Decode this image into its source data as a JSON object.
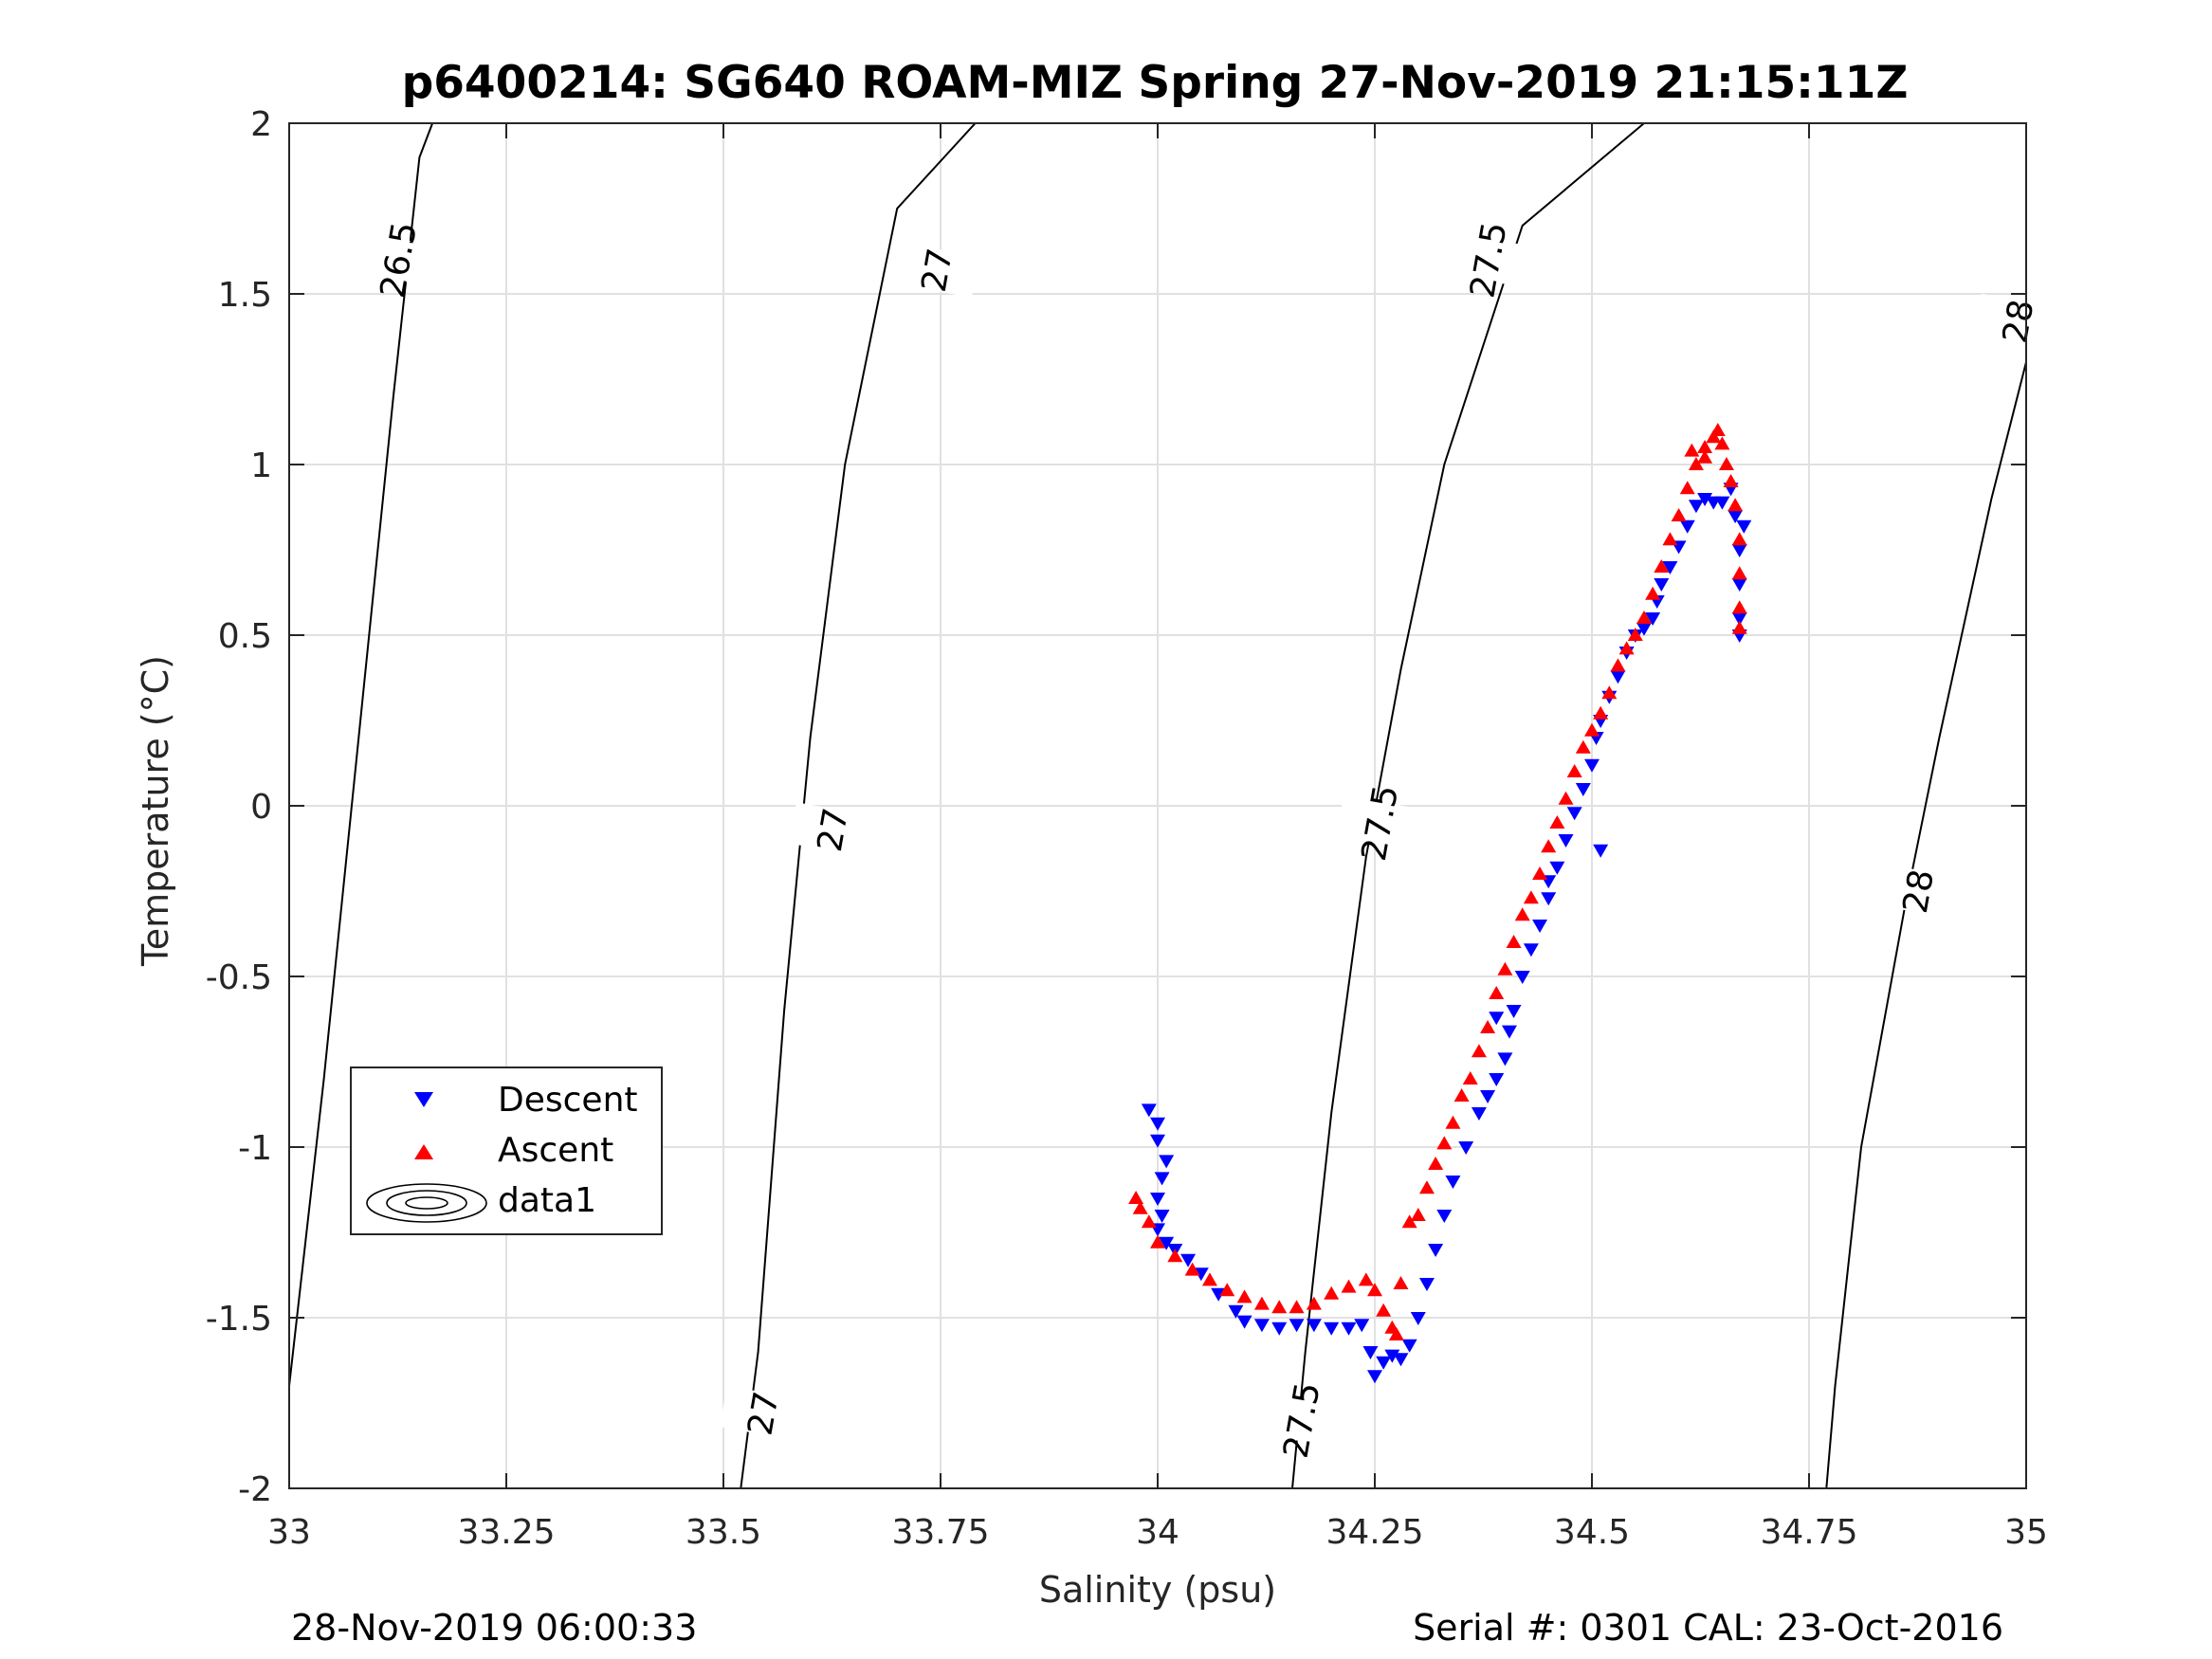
{
  "chart_data": {
    "type": "scatter",
    "title": "p6400214: SG640 ROAM-MIZ Spring 27-Nov-2019 21:15:11Z",
    "xlabel": "Salinity (psu)",
    "ylabel": "Temperature (°C)",
    "xlim": [
      33,
      35
    ],
    "ylim": [
      -2,
      2
    ],
    "xticks": [
      "33",
      "33.25",
      "33.5",
      "33.75",
      "34",
      "34.25",
      "34.5",
      "34.75",
      "35"
    ],
    "yticks": [
      "-2",
      "-1.5",
      "-1",
      "-0.5",
      "0",
      "0.5",
      "1",
      "1.5",
      "2"
    ],
    "grid": true,
    "legend": {
      "placement": "lower-left",
      "entries": [
        {
          "label": "Descent",
          "marker": "triangle-down",
          "color": "#0000ff"
        },
        {
          "label": "Ascent",
          "marker": "triangle-up",
          "color": "#ff0000"
        },
        {
          "label": "data1",
          "marker": "contour-ellipses",
          "color": "#000000"
        }
      ]
    },
    "contours": [
      {
        "level": "26.5",
        "points": [
          [
            32.99,
            -2.0
          ],
          [
            33.0,
            -1.7
          ],
          [
            33.04,
            -0.8
          ],
          [
            33.08,
            0.2
          ],
          [
            33.12,
            1.2
          ],
          [
            33.15,
            1.9
          ],
          [
            33.165,
            2.0
          ]
        ],
        "labels": [
          {
            "text": "26.5",
            "x": 33.125,
            "y": 1.6
          }
        ]
      },
      {
        "level": "27",
        "points": [
          [
            33.52,
            -2.0
          ],
          [
            33.54,
            -1.6
          ],
          [
            33.57,
            -0.6
          ],
          [
            33.6,
            0.2
          ],
          [
            33.64,
            1.0
          ],
          [
            33.7,
            1.75
          ],
          [
            33.79,
            2.0
          ]
        ],
        "labels": [
          {
            "text": "27",
            "x": 33.545,
            "y": -1.78
          },
          {
            "text": "27",
            "x": 33.625,
            "y": -0.07
          },
          {
            "text": "27",
            "x": 33.745,
            "y": 1.57
          }
        ]
      },
      {
        "level": "27.5",
        "points": [
          [
            34.155,
            -2.0
          ],
          [
            34.17,
            -1.6
          ],
          [
            34.2,
            -0.9
          ],
          [
            34.24,
            -0.15
          ],
          [
            34.28,
            0.4
          ],
          [
            34.33,
            1.0
          ],
          [
            34.42,
            1.7
          ],
          [
            34.56,
            2.0
          ]
        ],
        "labels": [
          {
            "text": "27.5",
            "x": 34.165,
            "y": -1.8
          },
          {
            "text": "27.5",
            "x": 34.255,
            "y": -0.05
          },
          {
            "text": "27.5",
            "x": 34.38,
            "y": 1.6
          }
        ]
      },
      {
        "level": "28",
        "points": [
          [
            34.77,
            -2.0
          ],
          [
            34.78,
            -1.7
          ],
          [
            34.81,
            -1.0
          ],
          [
            34.86,
            -0.3
          ],
          [
            34.9,
            0.2
          ],
          [
            34.96,
            0.9
          ],
          [
            35.0,
            1.3
          ]
        ],
        "labels": [
          {
            "text": "28",
            "x": 34.875,
            "y": -0.25
          },
          {
            "text": "28",
            "x": 34.99,
            "y": 1.42
          }
        ]
      }
    ],
    "series": [
      {
        "name": "Descent",
        "marker": "triangle-down",
        "color": "#0000ff",
        "points": [
          [
            33.99,
            -0.89
          ],
          [
            34.0,
            -0.93
          ],
          [
            34.0,
            -0.98
          ],
          [
            34.01,
            -1.04
          ],
          [
            34.005,
            -1.09
          ],
          [
            34.0,
            -1.15
          ],
          [
            34.005,
            -1.2
          ],
          [
            34.0,
            -1.24
          ],
          [
            34.01,
            -1.28
          ],
          [
            34.02,
            -1.3
          ],
          [
            34.035,
            -1.33
          ],
          [
            34.05,
            -1.37
          ],
          [
            34.07,
            -1.43
          ],
          [
            34.09,
            -1.48
          ],
          [
            34.1,
            -1.51
          ],
          [
            34.12,
            -1.52
          ],
          [
            34.14,
            -1.53
          ],
          [
            34.16,
            -1.52
          ],
          [
            34.18,
            -1.52
          ],
          [
            34.2,
            -1.53
          ],
          [
            34.22,
            -1.53
          ],
          [
            34.235,
            -1.52
          ],
          [
            34.245,
            -1.6
          ],
          [
            34.25,
            -1.67
          ],
          [
            34.26,
            -1.63
          ],
          [
            34.27,
            -1.61
          ],
          [
            34.28,
            -1.62
          ],
          [
            34.29,
            -1.58
          ],
          [
            34.3,
            -1.5
          ],
          [
            34.31,
            -1.4
          ],
          [
            34.32,
            -1.3
          ],
          [
            34.33,
            -1.2
          ],
          [
            34.34,
            -1.1
          ],
          [
            34.355,
            -1.0
          ],
          [
            34.37,
            -0.9
          ],
          [
            34.38,
            -0.85
          ],
          [
            34.39,
            -0.8
          ],
          [
            34.4,
            -0.74
          ],
          [
            34.405,
            -0.66
          ],
          [
            34.41,
            -0.6
          ],
          [
            34.42,
            -0.5
          ],
          [
            34.43,
            -0.42
          ],
          [
            34.44,
            -0.35
          ],
          [
            34.45,
            -0.27
          ],
          [
            34.46,
            -0.18
          ],
          [
            34.47,
            -0.1
          ],
          [
            34.48,
            -0.02
          ],
          [
            34.49,
            0.05
          ],
          [
            34.5,
            0.12
          ],
          [
            34.505,
            0.2
          ],
          [
            34.51,
            0.25
          ],
          [
            34.52,
            0.32
          ],
          [
            34.53,
            0.38
          ],
          [
            34.54,
            0.45
          ],
          [
            34.55,
            0.5
          ],
          [
            34.56,
            0.52
          ],
          [
            34.57,
            0.55
          ],
          [
            34.575,
            0.6
          ],
          [
            34.58,
            0.65
          ],
          [
            34.59,
            0.7
          ],
          [
            34.6,
            0.76
          ],
          [
            34.61,
            0.82
          ],
          [
            34.62,
            0.88
          ],
          [
            34.63,
            0.9
          ],
          [
            34.64,
            0.89
          ],
          [
            34.65,
            0.89
          ],
          [
            34.66,
            0.93
          ],
          [
            34.665,
            0.85
          ],
          [
            34.67,
            0.75
          ],
          [
            34.67,
            0.65
          ],
          [
            34.67,
            0.55
          ],
          [
            34.67,
            0.5
          ],
          [
            34.675,
            0.82
          ],
          [
            34.51,
            -0.13
          ],
          [
            34.45,
            -0.22
          ],
          [
            34.39,
            -0.62
          ]
        ]
      },
      {
        "name": "Ascent",
        "marker": "triangle-up",
        "color": "#ff0000",
        "points": [
          [
            33.975,
            -1.15
          ],
          [
            33.98,
            -1.18
          ],
          [
            33.99,
            -1.22
          ],
          [
            34.0,
            -1.28
          ],
          [
            34.02,
            -1.32
          ],
          [
            34.04,
            -1.36
          ],
          [
            34.06,
            -1.39
          ],
          [
            34.08,
            -1.42
          ],
          [
            34.1,
            -1.44
          ],
          [
            34.12,
            -1.46
          ],
          [
            34.14,
            -1.47
          ],
          [
            34.16,
            -1.47
          ],
          [
            34.18,
            -1.46
          ],
          [
            34.2,
            -1.43
          ],
          [
            34.22,
            -1.41
          ],
          [
            34.24,
            -1.39
          ],
          [
            34.25,
            -1.42
          ],
          [
            34.26,
            -1.48
          ],
          [
            34.27,
            -1.53
          ],
          [
            34.275,
            -1.55
          ],
          [
            34.28,
            -1.4
          ],
          [
            34.29,
            -1.22
          ],
          [
            34.3,
            -1.2
          ],
          [
            34.31,
            -1.12
          ],
          [
            34.32,
            -1.05
          ],
          [
            34.33,
            -0.99
          ],
          [
            34.34,
            -0.93
          ],
          [
            34.35,
            -0.85
          ],
          [
            34.36,
            -0.8
          ],
          [
            34.37,
            -0.72
          ],
          [
            34.38,
            -0.65
          ],
          [
            34.39,
            -0.55
          ],
          [
            34.4,
            -0.48
          ],
          [
            34.41,
            -0.4
          ],
          [
            34.42,
            -0.32
          ],
          [
            34.43,
            -0.27
          ],
          [
            34.44,
            -0.2
          ],
          [
            34.45,
            -0.12
          ],
          [
            34.46,
            -0.05
          ],
          [
            34.47,
            0.02
          ],
          [
            34.48,
            0.1
          ],
          [
            34.49,
            0.17
          ],
          [
            34.5,
            0.22
          ],
          [
            34.51,
            0.27
          ],
          [
            34.52,
            0.33
          ],
          [
            34.53,
            0.41
          ],
          [
            34.54,
            0.46
          ],
          [
            34.55,
            0.5
          ],
          [
            34.56,
            0.55
          ],
          [
            34.57,
            0.62
          ],
          [
            34.58,
            0.7
          ],
          [
            34.59,
            0.78
          ],
          [
            34.6,
            0.85
          ],
          [
            34.61,
            0.93
          ],
          [
            34.62,
            1.0
          ],
          [
            34.63,
            1.05
          ],
          [
            34.64,
            1.08
          ],
          [
            34.645,
            1.1
          ],
          [
            34.65,
            1.06
          ],
          [
            34.655,
            1.0
          ],
          [
            34.66,
            0.95
          ],
          [
            34.665,
            0.88
          ],
          [
            34.67,
            0.78
          ],
          [
            34.67,
            0.68
          ],
          [
            34.67,
            0.58
          ],
          [
            34.67,
            0.52
          ],
          [
            34.615,
            1.04
          ],
          [
            34.63,
            1.02
          ]
        ]
      }
    ]
  },
  "footer": {
    "left": "28-Nov-2019 06:00:33",
    "right": "Serial #: 0301  CAL: 23-Oct-2016"
  }
}
